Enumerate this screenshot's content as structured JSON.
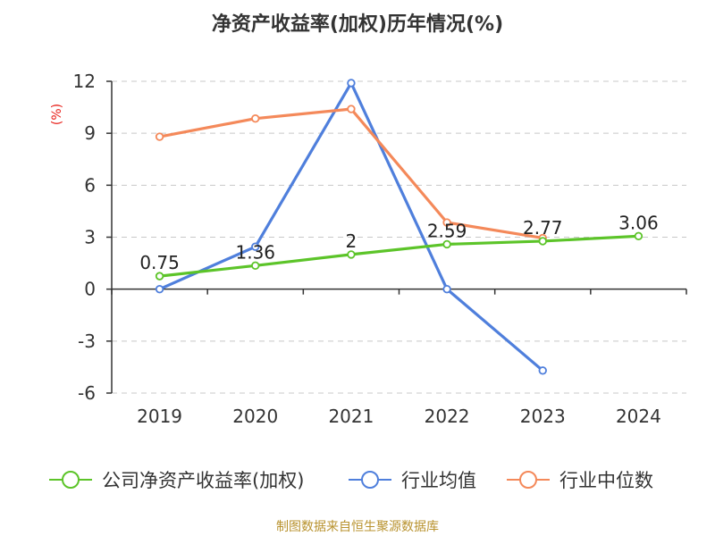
{
  "title": "净资产收益率(加权)历年情况(%)",
  "unit_label": "(%)",
  "source": "制图数据来自恒生聚源数据库",
  "colors": {
    "company": "#5cc429",
    "industry_avg": "#4f7fdc",
    "industry_median": "#f4895a",
    "unit": "#e8201a",
    "source": "#b8922e"
  },
  "chart_data": {
    "type": "line",
    "title": "净资产收益率(加权)历年情况(%)",
    "ylabel": "(%)",
    "xlabel": "",
    "categories": [
      "2019",
      "2020",
      "2021",
      "2022",
      "2023",
      "2024"
    ],
    "ylim": [
      -6,
      12
    ],
    "yticks": [
      "-6",
      "-3",
      "0",
      "3",
      "6",
      "9",
      "12"
    ],
    "grid": true,
    "legend_position": "bottom",
    "series": [
      {
        "name": "公司净资产收益率(加权)",
        "color": "#5cc429",
        "values": [
          0.75,
          1.36,
          2,
          2.59,
          2.77,
          3.06
        ],
        "labels": [
          "0.75",
          "1.36",
          "2",
          "2.59",
          "2.77",
          "3.06"
        ],
        "show_labels": true
      },
      {
        "name": "行业均值",
        "color": "#4f7fdc",
        "values": [
          0,
          2.45,
          11.9,
          0,
          -4.7,
          null
        ]
      },
      {
        "name": "行业中位数",
        "color": "#f4895a",
        "values": [
          8.8,
          9.85,
          10.4,
          3.85,
          2.95,
          null
        ]
      }
    ]
  }
}
